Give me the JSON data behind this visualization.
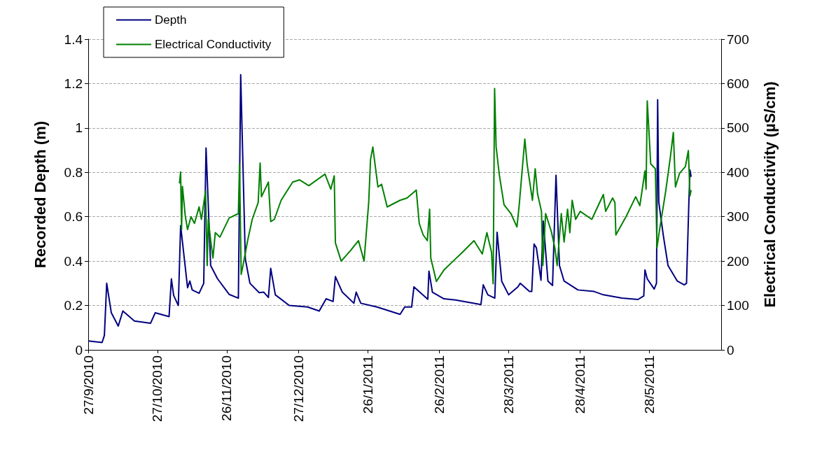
{
  "chart_data": {
    "type": "line",
    "ylabel": "Recorded Depth (m)",
    "y2label": "Electrical Conductivity (µS/cm)",
    "xlim": [
      "2010-09-27",
      "2011-06-28"
    ],
    "xticks": [
      {
        "value": "2010-09-27",
        "label": "27/9/2010"
      },
      {
        "value": "2010-10-27",
        "label": "27/10/2010"
      },
      {
        "value": "2010-11-26",
        "label": "26/11/2010"
      },
      {
        "value": "2010-12-27",
        "label": "27/12/2010"
      },
      {
        "value": "2011-01-26",
        "label": "26/1/2011"
      },
      {
        "value": "2011-02-26",
        "label": "26/2/2011"
      },
      {
        "value": "2011-03-28",
        "label": "28/3/2011"
      },
      {
        "value": "2011-04-28",
        "label": "28/4/2011"
      },
      {
        "value": "2011-05-28",
        "label": "28/5/2011"
      }
    ],
    "ylim": [
      0,
      1.4
    ],
    "yticks": [
      0,
      0.2,
      0.4,
      0.6,
      0.8,
      1,
      1.2,
      1.4
    ],
    "y2lim": [
      0,
      700
    ],
    "y2ticks": [
      0,
      100,
      200,
      300,
      400,
      500,
      600,
      700
    ],
    "grid": "y",
    "legend": "top left",
    "marker": "none",
    "line_style": "solid",
    "series": [
      {
        "name": "Depth",
        "color": "#000080",
        "x": [
          "2010-09-27",
          "2010-10-03",
          "2010-10-04",
          "2010-10-05",
          "2010-10-07",
          "2010-10-10",
          "2010-10-12",
          "2010-10-17",
          "2010-10-24",
          "2010-10-26",
          "2010-11-01",
          "2010-11-02",
          "2010-11-03",
          "2010-11-05",
          "2010-11-06",
          "2010-11-09",
          "2010-11-10",
          "2010-11-11",
          "2010-11-14",
          "2010-11-16",
          "2010-11-17",
          "2010-11-19",
          "2010-11-22",
          "2010-11-27",
          "2010-12-01",
          "2010-12-02",
          "2010-12-04",
          "2010-12-06",
          "2010-12-10",
          "2010-12-12",
          "2010-12-14",
          "2010-12-15",
          "2010-12-17",
          "2010-12-23",
          "2010-12-31",
          "2011-01-05",
          "2011-01-08",
          "2011-01-11",
          "2011-01-12",
          "2011-01-15",
          "2011-01-20",
          "2011-01-21",
          "2011-01-23",
          "2011-01-30",
          "2011-02-09",
          "2011-02-11",
          "2011-02-14",
          "2011-02-15",
          "2011-02-21",
          "2011-02-21T12:00",
          "2011-02-23",
          "2011-02-28",
          "2011-03-05",
          "2011-03-16",
          "2011-03-17",
          "2011-03-19",
          "2011-03-22",
          "2011-03-23",
          "2011-03-25",
          "2011-03-28",
          "2011-04-01",
          "2011-04-02",
          "2011-04-06",
          "2011-04-07",
          "2011-04-08",
          "2011-04-09",
          "2011-04-11",
          "2011-04-12",
          "2011-04-14",
          "2011-04-16",
          "2011-04-17T12:00",
          "2011-04-19",
          "2011-04-21",
          "2011-04-27",
          "2011-05-04",
          "2011-05-08",
          "2011-05-16",
          "2011-05-23",
          "2011-05-25T12:00",
          "2011-05-26",
          "2011-05-27",
          "2011-05-30",
          "2011-05-31",
          "2011-05-31T12:00",
          "2011-06-01",
          "2011-06-03",
          "2011-06-05",
          "2011-06-09",
          "2011-06-12",
          "2011-06-13",
          "2011-06-14",
          "2011-06-14T12:00",
          "2011-06-15"
        ],
        "values": [
          0.04,
          0.033,
          0.065,
          0.3,
          0.167,
          0.107,
          0.175,
          0.13,
          0.12,
          0.167,
          0.15,
          0.32,
          0.245,
          0.2,
          0.56,
          0.28,
          0.31,
          0.27,
          0.255,
          0.3,
          0.91,
          0.38,
          0.32,
          0.25,
          0.233,
          1.24,
          0.41,
          0.3,
          0.258,
          0.26,
          0.236,
          0.367,
          0.248,
          0.2,
          0.193,
          0.175,
          0.23,
          0.218,
          0.33,
          0.26,
          0.21,
          0.26,
          0.21,
          0.193,
          0.16,
          0.193,
          0.193,
          0.284,
          0.228,
          0.355,
          0.26,
          0.23,
          0.225,
          0.204,
          0.293,
          0.248,
          0.233,
          0.53,
          0.309,
          0.248,
          0.284,
          0.3,
          0.263,
          0.263,
          0.477,
          0.46,
          0.314,
          0.58,
          0.31,
          0.29,
          0.787,
          0.38,
          0.31,
          0.27,
          0.263,
          0.248,
          0.233,
          0.227,
          0.243,
          0.36,
          0.32,
          0.274,
          0.3,
          1.127,
          0.665,
          0.512,
          0.38,
          0.31,
          0.293,
          0.3,
          0.66,
          0.81,
          0.78
        ]
      },
      {
        "name": "Electrical Conductivity",
        "color": "#008000",
        "axis": "y2",
        "x": [
          "2010-11-05T12:00",
          "2010-11-06",
          "2010-11-06T10:00",
          "2010-11-06T19:00",
          "2010-11-08",
          "2010-11-09",
          "2010-11-10T12:00",
          "2010-11-12",
          "2010-11-14",
          "2010-11-15",
          "2010-11-16T19:00",
          "2010-11-17T12:00",
          "2010-11-18",
          "2010-11-19",
          "2010-11-20",
          "2010-11-21",
          "2010-11-23",
          "2010-11-27",
          "2010-12-01",
          "2010-12-01T12:00",
          "2010-12-02T05:00",
          "2010-12-03",
          "2010-12-05",
          "2010-12-07",
          "2010-12-09T14:00",
          "2010-12-10T10:00",
          "2010-12-11",
          "2010-12-14",
          "2010-12-15",
          "2010-12-16T14:00",
          "2010-12-19T12:00",
          "2010-12-24T12:00",
          "2010-12-27T12:00",
          "2010-12-31T12:00",
          "2011-01-07T12:00",
          "2011-01-10",
          "2011-01-11T12:00",
          "2011-01-12",
          "2011-01-14T12:00",
          "2011-01-18T10:00",
          "2011-01-22",
          "2011-01-24T10:00",
          "2011-01-26T10:00",
          "2011-01-27T05:00",
          "2011-01-28T05:00",
          "2011-01-30T10:00",
          "2011-02-01",
          "2011-02-03T10:00",
          "2011-02-09",
          "2011-02-12",
          "2011-02-16",
          "2011-02-17T07:00",
          "2011-02-19",
          "2011-02-20T19:00",
          "2011-02-21T19:00",
          "2011-02-22T07:00",
          "2011-02-24T17:00",
          "2011-02-28",
          "2011-03-04",
          "2011-03-08",
          "2011-03-13",
          "2011-03-16T14:00",
          "2011-03-18T14:00",
          "2011-03-20T14:00",
          "2011-03-21T07:00",
          "2011-03-21T22:00",
          "2011-03-22T14:00",
          "2011-03-24",
          "2011-03-26",
          "2011-03-29",
          "2011-03-31T14:00",
          "2011-04-01T14:00",
          "2011-04-04",
          "2011-04-05",
          "2011-04-07T07:00",
          "2011-04-08T12:00",
          "2011-04-09T12:00",
          "2011-04-11T05:00",
          "2011-04-11T19:00",
          "2011-04-13",
          "2011-04-15T12:00",
          "2011-04-17",
          "2011-04-18",
          "2011-04-19T19:00",
          "2011-04-21",
          "2011-04-22T12:00",
          "2011-04-23T12:00",
          "2011-04-24T12:00",
          "2011-04-26",
          "2011-04-28",
          "2011-05-03",
          "2011-05-08",
          "2011-05-09",
          "2011-05-12",
          "2011-05-13",
          "2011-05-13T10:00",
          "2011-05-18",
          "2011-05-22",
          "2011-05-23T19:00",
          "2011-05-26",
          "2011-05-26T12:00",
          "2011-05-27",
          "2011-05-28T12:00",
          "2011-05-30T12:00",
          "2011-05-31T05:00",
          "2011-06-01",
          "2011-06-04",
          "2011-06-06",
          "2011-06-07T07:00",
          "2011-06-08T05:00",
          "2011-06-10",
          "2011-06-12T12:00",
          "2011-06-13T19:00",
          "2011-06-14T12:00",
          "2011-06-15"
        ],
        "values": [
          375,
          401,
          271,
          368,
          302,
          271,
          300,
          285,
          322,
          294,
          358,
          190,
          294,
          246,
          207,
          264,
          254,
          297,
          307,
          419,
          170,
          190,
          246,
          294,
          332,
          421,
          345,
          378,
          289,
          294,
          337,
          378,
          383,
          370,
          396,
          362,
          392,
          241,
          200,
          223,
          246,
          200,
          332,
          429,
          457,
          367,
          373,
          322,
          337,
          342,
          360,
          285,
          259,
          246,
          317,
          207,
          154,
          180,
          200,
          220,
          246,
          216,
          264,
          220,
          149,
          589,
          457,
          393,
          327,
          307,
          277,
          327,
          475,
          418,
          337,
          408,
          352,
          312,
          190,
          307,
          266,
          230,
          190,
          307,
          243,
          317,
          264,
          337,
          294,
          312,
          294,
          350,
          312,
          342,
          332,
          259,
          302,
          345,
          325,
          403,
          362,
          561,
          419,
          408,
          230,
          259,
          358,
          434,
          490,
          367,
          398,
          413,
          449,
          347,
          360
        ]
      }
    ]
  }
}
